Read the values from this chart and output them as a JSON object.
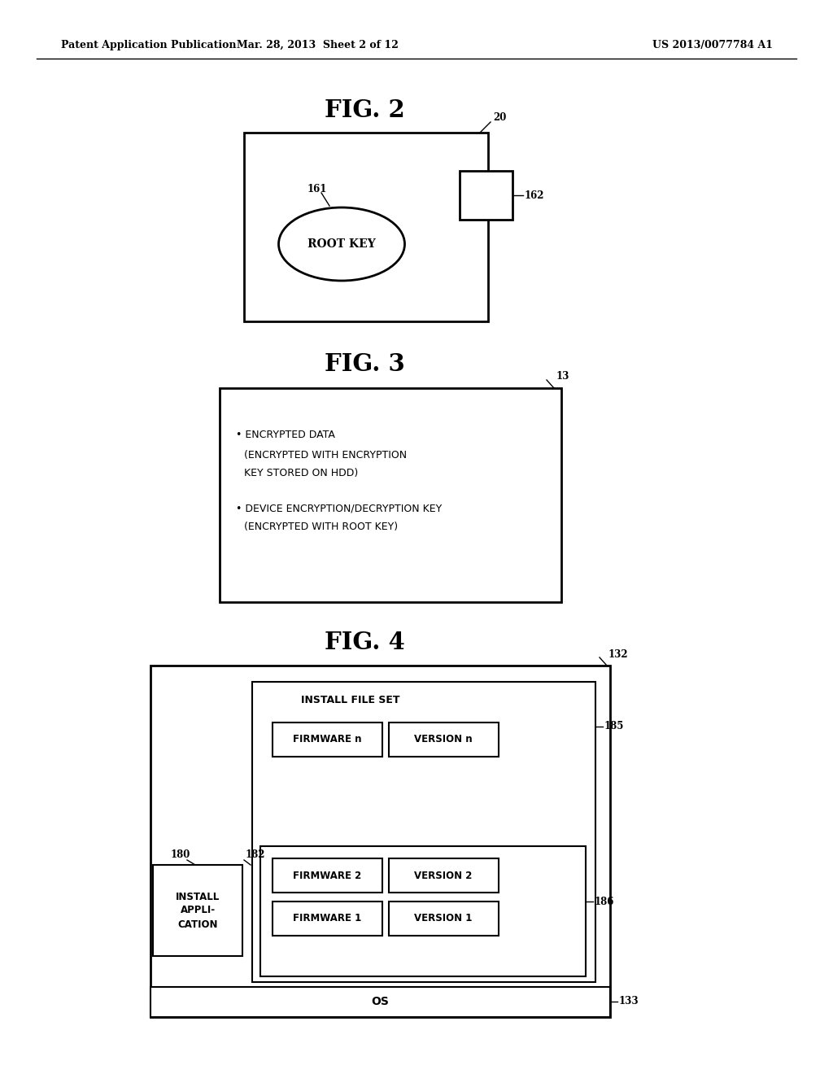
{
  "bg_color": "#ffffff",
  "header_left": "Patent Application Publication",
  "header_mid": "Mar. 28, 2013  Sheet 2 of 12",
  "header_right": "US 2013/0077784 A1",
  "fig2_title": "FIG. 2",
  "fig3_title": "FIG. 3",
  "fig4_title": "FIG. 4",
  "fig2_label": "20",
  "fig2_sub1": "161",
  "fig2_sub2": "162",
  "fig2_root_key": "ROOT KEY",
  "fig3_label": "13",
  "fig3_text": "• ENCRYPTED DATA\n  (ENCRYPTED WITH ENCRYPTION\n   KEY STORED ON HDD)\n\n• DEVICE ENCRYPTION/DECRYPTION KEY\n  (ENCRYPTED WITH ROOT KEY)",
  "fig4_label": "132",
  "fig4_install_label": "INSTALL FILE SET",
  "fig4_fw_n": "FIRMWARE n",
  "fig4_ver_n": "VERSION n",
  "fig4_fw_2": "FIRMWARE 2",
  "fig4_ver_2": "VERSION 2",
  "fig4_fw_1": "FIRMWARE 1",
  "fig4_ver_1": "VERSION 1",
  "fig4_os": "OS",
  "fig4_label_180": "180",
  "fig4_label_182": "182",
  "fig4_label_185": "185",
  "fig4_label_186": "186",
  "fig4_label_133": "133",
  "fig4_install_app": "INSTALL\nAPPLI-\nCATION"
}
